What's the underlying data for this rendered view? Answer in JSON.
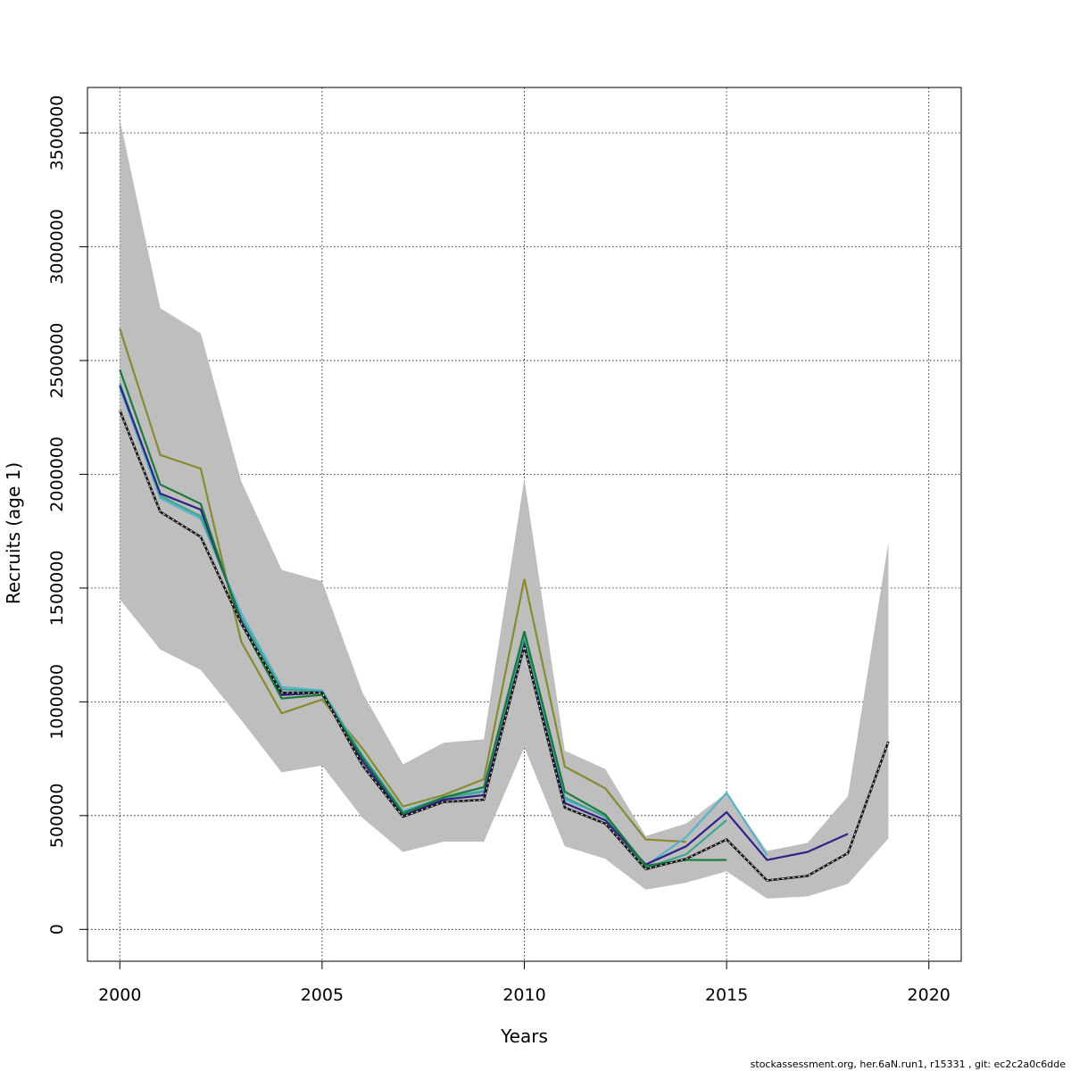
{
  "footer": "stockassessment.org, her.6aN.run1, r15331 , git: ec2c2a0c6dde",
  "chart_data": {
    "type": "line",
    "title": "",
    "xlabel": "Years",
    "ylabel": "Recruits (age 1)",
    "xlim": [
      1999.2,
      2020.8
    ],
    "ylim": [
      -140000,
      3700000
    ],
    "xticks": [
      2000,
      2005,
      2010,
      2015,
      2020
    ],
    "yticks": [
      0,
      500000,
      1000000,
      1500000,
      2000000,
      2500000,
      3000000,
      3500000
    ],
    "grid": true,
    "band": {
      "color": "#bebebe",
      "x": [
        2000,
        2001,
        2002,
        2003,
        2004,
        2005,
        2006,
        2007,
        2008,
        2009,
        2010,
        2011,
        2012,
        2013,
        2014,
        2015,
        2016,
        2017,
        2018,
        2019
      ],
      "lower": [
        1450000,
        1230000,
        1140000,
        920000,
        690000,
        720000,
        490000,
        340000,
        385000,
        385000,
        800000,
        365000,
        310000,
        175000,
        205000,
        255000,
        135000,
        145000,
        200000,
        400000
      ],
      "upper": [
        3560000,
        2730000,
        2620000,
        1970000,
        1580000,
        1530000,
        1040000,
        725000,
        820000,
        835000,
        1980000,
        785000,
        705000,
        410000,
        465000,
        600000,
        345000,
        380000,
        585000,
        1700000
      ]
    },
    "series": [
      {
        "color": "#888a30",
        "dashed": false,
        "x": [
          2000,
          2001,
          2002,
          2003,
          2004,
          2005,
          2006,
          2007,
          2008,
          2009,
          2010,
          2011,
          2012,
          2013,
          2014
        ],
        "y": [
          2640000,
          2085000,
          2025000,
          1265000,
          950000,
          1010000,
          795000,
          540000,
          590000,
          660000,
          1540000,
          715000,
          620000,
          395000,
          385000
        ]
      },
      {
        "color": "#56b4c9",
        "dashed": false,
        "x": [
          2000,
          2001,
          2002,
          2003,
          2004,
          2005,
          2006,
          2007,
          2008,
          2009,
          2010,
          2011,
          2012,
          2013,
          2014,
          2015,
          2016
        ],
        "y": [
          2380000,
          1895000,
          1805000,
          1390000,
          1065000,
          1050000,
          765000,
          520000,
          580000,
          610000,
          1260000,
          570000,
          500000,
          280000,
          405000,
          600000,
          325000
        ]
      },
      {
        "color": "#3ba58e",
        "dashed": false,
        "x": [
          2000,
          2001,
          2002,
          2003,
          2004,
          2005,
          2006,
          2007,
          2008,
          2009,
          2010,
          2011,
          2012,
          2013,
          2014,
          2015
        ],
        "y": [
          2400000,
          1905000,
          1815000,
          1370000,
          1055000,
          1045000,
          760000,
          515000,
          578000,
          605000,
          1275000,
          580000,
          495000,
          270000,
          330000,
          480000
        ]
      },
      {
        "color": "#2e2289",
        "dashed": false,
        "x": [
          2000,
          2001,
          2002,
          2003,
          2004,
          2005,
          2006,
          2007,
          2008,
          2009,
          2010,
          2011,
          2012,
          2013,
          2014,
          2015,
          2016,
          2017,
          2018
        ],
        "y": [
          2390000,
          1915000,
          1845000,
          1355000,
          1030000,
          1040000,
          740000,
          500000,
          570000,
          590000,
          1250000,
          555000,
          480000,
          285000,
          365000,
          515000,
          305000,
          340000,
          420000
        ]
      },
      {
        "color": "#1a7a3c",
        "dashed": false,
        "x": [
          2000,
          2001,
          2002,
          2003,
          2004,
          2005,
          2006,
          2007,
          2008,
          2009,
          2010,
          2011,
          2012,
          2013,
          2014,
          2015
        ],
        "y": [
          2460000,
          1955000,
          1870000,
          1345000,
          1015000,
          1030000,
          755000,
          510000,
          580000,
          625000,
          1310000,
          605000,
          505000,
          280000,
          305000,
          305000
        ]
      },
      {
        "color": "#1a1a1a",
        "dashed": true,
        "x": [
          2000,
          2001,
          2002,
          2003,
          2004,
          2005,
          2006,
          2007,
          2008,
          2009,
          2010,
          2011,
          2012,
          2013,
          2014,
          2015,
          2016,
          2017,
          2018,
          2019
        ],
        "y": [
          2280000,
          1835000,
          1725000,
          1345000,
          1040000,
          1040000,
          720000,
          495000,
          560000,
          570000,
          1245000,
          535000,
          465000,
          265000,
          310000,
          395000,
          215000,
          235000,
          335000,
          825000
        ]
      }
    ]
  }
}
